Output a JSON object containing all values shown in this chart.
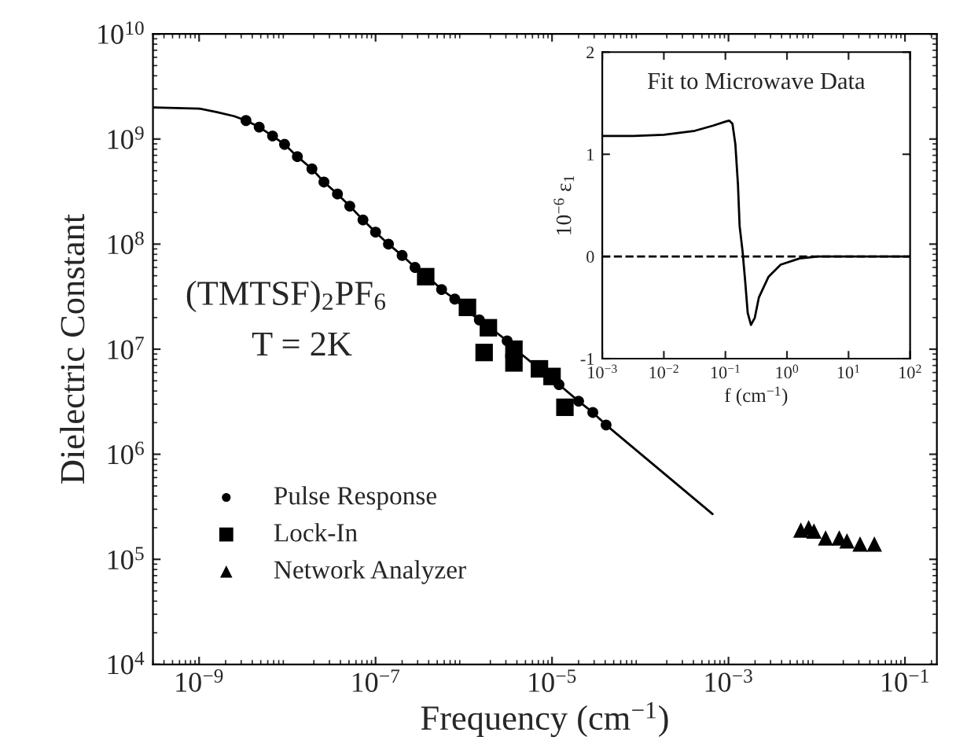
{
  "chart_data": [
    {
      "type": "scatter",
      "xlabel": "Frequency (cm$^{−1}$)",
      "ylabel": "Dielectric Constant",
      "log": "xy",
      "xlim": [
        3e-10,
        0.23
      ],
      "ylim": [
        10000.0,
        10000000000.0
      ],
      "xticks": [
        {
          "value": 1e-09,
          "label": "10$^{−9}$"
        },
        {
          "value": 1e-07,
          "label": "10$^{−7}$"
        },
        {
          "value": 1e-05,
          "label": "10$^{−5}$"
        },
        {
          "value": 0.001,
          "label": "10$^{−3}$"
        },
        {
          "value": 0.1,
          "label": "10$^{−1}$"
        }
      ],
      "yticks": [
        {
          "value": 10000.0,
          "label": "10$^{4}$"
        },
        {
          "value": 100000.0,
          "label": "10$^{5}$"
        },
        {
          "value": 1000000.0,
          "label": "10$^{6}$"
        },
        {
          "value": 10000000.0,
          "label": "10$^{7}$"
        },
        {
          "value": 100000000.0,
          "label": "10$^{8}$"
        },
        {
          "value": 1000000000.0,
          "label": "10$^{9}$"
        },
        {
          "value": 10000000000.0,
          "label": "10$^{10}$"
        }
      ],
      "annotations": [
        "(TMTSF)$_{2}$PF$_{6}$",
        "T = 2K"
      ],
      "legend": "bottom left",
      "grid": false,
      "series": [
        {
          "type": "line",
          "color": "#000000",
          "marker": "none",
          "line_style": "solid",
          "x": [
            3e-10,
            1e-09,
            1.6e-09,
            2.5e-09,
            3.4e-09,
            4.8e-09,
            6.8e-09,
            9.3e-09,
            1.3e-08,
            1.9e-08,
            2.6e-08,
            3.7e-08,
            5.1e-08,
            7.2e-08,
            1e-07,
            1.4e-07,
            2e-07,
            2.8e-07,
            4e-07,
            5.6e-07,
            7.9e-07,
            1.1e-06,
            1.5e-06,
            2.2e-06,
            3.1e-06,
            4.4e-06,
            6.2e-06,
            8.5e-06,
            1.2e-05,
            2e-05,
            2.9e-05,
            4.1e-05,
            0.00066
          ],
          "values": [
            2000000000.0,
            1950000000.0,
            1800000000.0,
            1650000000.0,
            1500000000.0,
            1300000000.0,
            1070000000.0,
            890000000.0,
            680000000.0,
            520000000.0,
            390000000.0,
            300000000.0,
            230000000.0,
            170000000.0,
            130000000.0,
            100000000.0,
            78000000.0,
            60000000.0,
            48000000.0,
            37000000.0,
            30000000.0,
            23000000.0,
            19000000.0,
            15000000.0,
            12000000.0,
            9100000.0,
            7200000.0,
            5800000.0,
            4600000.0,
            3200000.0,
            2500000.0,
            1900000.0,
            270000.0
          ]
        },
        {
          "name": "Pulse Response",
          "color": "#000000",
          "marker": "circle",
          "x": [
            3.4e-09,
            4.8e-09,
            6.8e-09,
            9.3e-09,
            1.3e-08,
            1.9e-08,
            2.6e-08,
            3.7e-08,
            5.1e-08,
            7.2e-08,
            1e-07,
            1.4e-07,
            2e-07,
            2.8e-07,
            5.6e-07,
            7.9e-07,
            1.1e-06,
            1.5e-06,
            2.2e-06,
            3.1e-06,
            4.4e-06,
            6.2e-06,
            1.2e-05,
            2e-05,
            2.9e-05,
            4.1e-05
          ],
          "values": [
            1500000000.0,
            1300000000.0,
            1070000000.0,
            890000000.0,
            680000000.0,
            520000000.0,
            390000000.0,
            300000000.0,
            230000000.0,
            170000000.0,
            130000000.0,
            100000000.0,
            78000000.0,
            60000000.0,
            37000000.0,
            30000000.0,
            null,
            19000000.0,
            null,
            12000000.0,
            null,
            null,
            4600000.0,
            3200000.0,
            2500000.0,
            1900000.0
          ]
        },
        {
          "name": "Lock-In",
          "color": "#000000",
          "marker": "square",
          "x": [
            3.7e-07,
            1.1e-06,
            1.9e-06,
            1.7e-06,
            3.7e-06,
            3.7e-06,
            7.2e-06,
            1e-05,
            1.4e-05
          ],
          "values": [
            49000000.0,
            25000000.0,
            16000000.0,
            9300000.0,
            10000000.0,
            7400000.0,
            6500000.0,
            5500000.0,
            2800000.0
          ]
        },
        {
          "name": "Network Analyzer",
          "color": "#000000",
          "marker": "triangle",
          "x": [
            0.0066,
            0.0081,
            0.0093,
            0.0126,
            0.018,
            0.022,
            0.031,
            0.045
          ],
          "values": [
            190000.0,
            200000.0,
            186000.0,
            160000.0,
            160000.0,
            150000.0,
            140000.0,
            140000.0
          ]
        }
      ]
    },
    {
      "type": "line",
      "xlabel": "f (cm$^{−1}$)",
      "ylabel": "10$^{−6}$ ε$_{1}$",
      "log": "x",
      "xlim": [
        0.001,
        100
      ],
      "ylim": [
        -1,
        2
      ],
      "xticks": [
        {
          "value": 0.001,
          "label": "10$^{−3}$"
        },
        {
          "value": 0.01,
          "label": "10$^{−2}$"
        },
        {
          "value": 0.1,
          "label": "10$^{−1}$"
        },
        {
          "value": 1,
          "label": "10$^{0}$"
        },
        {
          "value": 10,
          "label": "10$^{1}$"
        },
        {
          "value": 100,
          "label": "10$^{2}$"
        }
      ],
      "yticks": [
        -1,
        0,
        1,
        2
      ],
      "annotations": [
        "Fit to Microwave Data"
      ],
      "ref_lines": [
        {
          "axis": "y",
          "value": 0,
          "line_style": "dashed",
          "color": "#000000"
        }
      ],
      "series": [
        {
          "color": "#000000",
          "line_style": "solid",
          "x": [
            0.001,
            0.0032,
            0.01,
            0.032,
            0.063,
            0.1,
            0.115,
            0.13,
            0.145,
            0.16,
            0.17,
            0.19,
            0.21,
            0.23,
            0.26,
            0.3,
            0.35,
            0.5,
            0.79,
            1.6,
            3.2,
            10,
            100
          ],
          "values": [
            1.18,
            1.18,
            1.19,
            1.23,
            1.28,
            1.32,
            1.33,
            1.3,
            1.1,
            0.7,
            0.3,
            0.05,
            -0.25,
            -0.55,
            -0.67,
            -0.6,
            -0.4,
            -0.2,
            -0.08,
            -0.02,
            0,
            0,
            0
          ]
        }
      ]
    }
  ]
}
